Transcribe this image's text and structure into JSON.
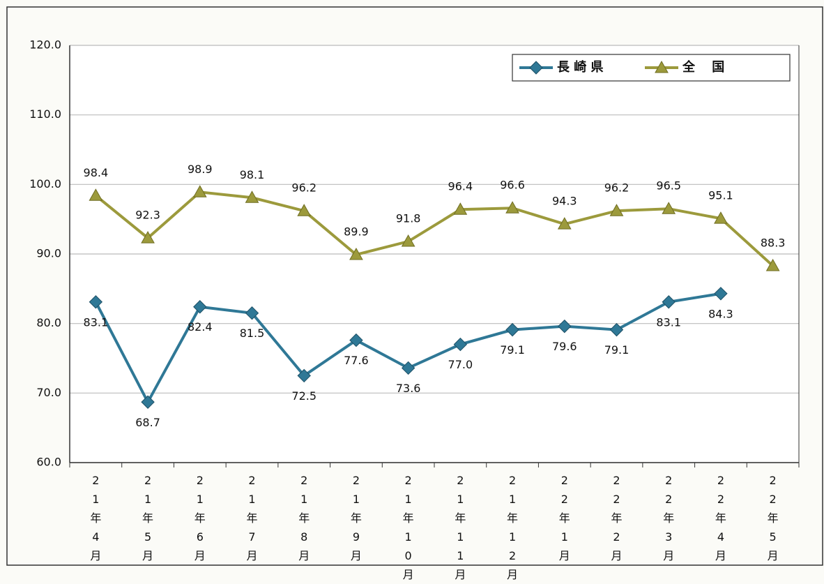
{
  "chart_data": {
    "type": "line",
    "categories": [
      "21年4月",
      "21年5月",
      "21年6月",
      "21年7月",
      "21年8月",
      "21年9月",
      "21年10月",
      "21年11月",
      "21年12月",
      "22年1月",
      "22年2月",
      "22年3月",
      "22年4月",
      "22年5月"
    ],
    "series": [
      {
        "name": "長 崎 県",
        "color": "#2f7896",
        "marker": "diamond",
        "values": [
          83.1,
          68.7,
          82.4,
          81.5,
          72.5,
          77.6,
          73.6,
          77.0,
          79.1,
          79.6,
          79.1,
          83.1,
          84.3,
          null
        ],
        "value_labels": [
          "83.1",
          "68.7",
          "82.4",
          "81.5",
          "72.5",
          "77.6",
          "73.6",
          "77.0",
          "79.1",
          "79.6",
          "79.1",
          "83.1",
          "84.3",
          null
        ]
      },
      {
        "name": "全　 国",
        "color": "#9c9a3c",
        "marker": "triangle",
        "values": [
          98.4,
          92.3,
          98.9,
          98.1,
          96.2,
          89.9,
          91.8,
          96.4,
          96.6,
          94.3,
          96.2,
          96.5,
          95.1,
          88.3
        ],
        "value_labels": [
          "98.4",
          "92.3",
          "98.9",
          "98.1",
          "96.2",
          "89.9",
          "91.8",
          "96.4",
          "96.6",
          "94.3",
          "96.2",
          "96.5",
          "95.1",
          "88.3"
        ]
      }
    ],
    "ylim": [
      60,
      120
    ],
    "yticks": [
      {
        "value": 60,
        "label": "60.0"
      },
      {
        "value": 70,
        "label": "70.0"
      },
      {
        "value": 80,
        "label": "80.0"
      },
      {
        "value": 90,
        "label": "90.0"
      },
      {
        "value": 100,
        "label": "100.0"
      },
      {
        "value": 110,
        "label": "110.0"
      },
      {
        "value": 120,
        "label": "120.0"
      }
    ],
    "grid": true,
    "legend": "top-right"
  }
}
